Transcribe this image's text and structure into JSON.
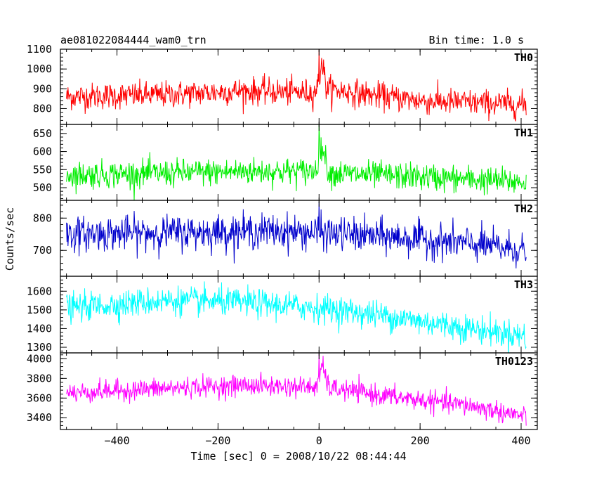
{
  "header": {
    "left": "ae081022084444_wam0_trn",
    "right": "Bin time: 1.0 s"
  },
  "chart_data": {
    "type": "line",
    "xlabel": "Time [sec] 0 = 2008/10/22 08:44:44",
    "ylabel": "Counts/sec",
    "xlim": [
      -512,
      432
    ],
    "x_ticks": [
      -400,
      -200,
      0,
      200,
      400
    ],
    "x_tick_labels": [
      "−400",
      "−200",
      "0",
      "200",
      "400"
    ],
    "bin_time_s": 1.0,
    "x_start": -500,
    "x_end": 410,
    "panels": [
      {
        "name": "TH0",
        "color": "#ff0000",
        "ylim": [
          720,
          1100
        ],
        "yticks": [
          800,
          900,
          1000,
          1100
        ],
        "trend": [
          [
            -500,
            860
          ],
          [
            -300,
            870
          ],
          [
            -150,
            890
          ],
          [
            -10,
            880
          ],
          [
            0,
            930
          ],
          [
            5,
            1050
          ],
          [
            15,
            900
          ],
          [
            100,
            870
          ],
          [
            200,
            840
          ],
          [
            300,
            830
          ],
          [
            410,
            820
          ]
        ],
        "noise": 45,
        "spike": {
          "t": 0,
          "peak": 1100
        }
      },
      {
        "name": "TH1",
        "color": "#00ee00",
        "ylim": [
          465,
          675
        ],
        "yticks": [
          500,
          550,
          600,
          650
        ],
        "trend": [
          [
            -500,
            535
          ],
          [
            -300,
            540
          ],
          [
            -150,
            545
          ],
          [
            -10,
            545
          ],
          [
            0,
            580
          ],
          [
            5,
            620
          ],
          [
            20,
            540
          ],
          [
            200,
            530
          ],
          [
            410,
            515
          ]
        ],
        "noise": 25,
        "spike": {
          "t": 0,
          "peak": 675
        }
      },
      {
        "name": "TH2",
        "color": "#0000cc",
        "ylim": [
          620,
          855
        ],
        "yticks": [
          700,
          800
        ],
        "trend": [
          [
            -500,
            750
          ],
          [
            -300,
            755
          ],
          [
            -100,
            760
          ],
          [
            0,
            755
          ],
          [
            100,
            745
          ],
          [
            200,
            735
          ],
          [
            300,
            720
          ],
          [
            410,
            700
          ]
        ],
        "noise": 35,
        "spike": {
          "t": 0,
          "peak": 850
        }
      },
      {
        "name": "TH3",
        "color": "#00ffff",
        "ylim": [
          1270,
          1680
        ],
        "yticks": [
          1300,
          1400,
          1500,
          1600
        ],
        "trend": [
          [
            -500,
            1510
          ],
          [
            -300,
            1550
          ],
          [
            -150,
            1540
          ],
          [
            0,
            1510
          ],
          [
            100,
            1480
          ],
          [
            200,
            1440
          ],
          [
            300,
            1400
          ],
          [
            410,
            1360
          ]
        ],
        "noise": 50
      },
      {
        "name": "TH0123",
        "color": "#ff00ff",
        "ylim": [
          3280,
          4060
        ],
        "yticks": [
          3400,
          3600,
          3800,
          4000
        ],
        "trend": [
          [
            -500,
            3650
          ],
          [
            -300,
            3700
          ],
          [
            -150,
            3730
          ],
          [
            -10,
            3710
          ],
          [
            0,
            3760
          ],
          [
            5,
            3950
          ],
          [
            20,
            3700
          ],
          [
            150,
            3610
          ],
          [
            300,
            3520
          ],
          [
            410,
            3410
          ]
        ],
        "noise": 70,
        "spike": {
          "t": 0,
          "peak": 4050
        }
      }
    ]
  }
}
